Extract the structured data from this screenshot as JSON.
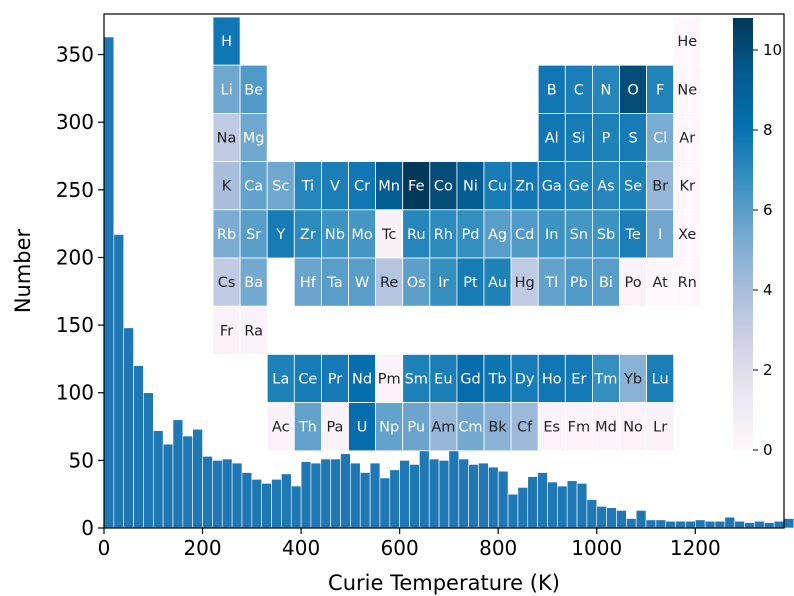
{
  "chart_data": {
    "type": "bar",
    "xlabel": "Curie Temperature (K)",
    "ylabel": "Number",
    "xlim": [
      0,
      1380
    ],
    "ylim": [
      0,
      380
    ],
    "xticks": [
      0,
      200,
      400,
      600,
      800,
      1000,
      1200
    ],
    "yticks": [
      0,
      50,
      100,
      150,
      200,
      250,
      300,
      350
    ],
    "bin_width": 20,
    "bin_start": 0,
    "values": [
      363,
      217,
      148,
      120,
      100,
      72,
      62,
      80,
      68,
      73,
      53,
      50,
      51,
      48,
      41,
      36,
      33,
      36,
      40,
      31,
      49,
      48,
      51,
      51,
      55,
      48,
      41,
      48,
      37,
      43,
      50,
      47,
      58,
      51,
      50,
      58,
      51,
      47,
      48,
      45,
      42,
      25,
      30,
      38,
      41,
      34,
      31,
      35,
      33,
      21,
      16,
      15,
      13,
      7,
      13,
      6,
      6,
      5,
      5,
      5,
      6,
      5,
      5,
      8,
      5,
      4,
      5,
      4,
      5,
      7,
      4,
      6,
      3,
      3,
      4,
      4,
      4,
      3,
      4,
      3,
      3,
      5,
      3,
      3,
      2,
      3,
      5,
      4,
      3,
      2,
      3,
      1,
      1,
      1,
      1,
      1,
      1,
      1,
      1,
      1,
      1,
      0,
      0,
      0,
      0,
      1,
      1,
      0,
      0,
      0
    ],
    "colors": {
      "bar": "#1f77b4",
      "bar_edge": "#ffffff"
    },
    "inset": {
      "type": "heatmap",
      "colormap": "PuBu",
      "colorbar_range": [
        0,
        10.8
      ],
      "colorbar_ticks": [
        0,
        2,
        4,
        6,
        8,
        10
      ],
      "elements": [
        [
          "H",
          1,
          1,
          7.8
        ],
        [
          "He",
          1,
          18,
          0
        ],
        [
          "Li",
          2,
          1,
          5.5
        ],
        [
          "Be",
          2,
          2,
          6.2
        ],
        [
          "B",
          2,
          13,
          7.8
        ],
        [
          "C",
          2,
          14,
          7.5
        ],
        [
          "N",
          2,
          15,
          7.2
        ],
        [
          "O",
          2,
          16,
          10
        ],
        [
          "F",
          2,
          17,
          7.3
        ],
        [
          "Ne",
          2,
          18,
          0
        ],
        [
          "Na",
          3,
          1,
          3.2
        ],
        [
          "Mg",
          3,
          2,
          5.5
        ],
        [
          "Al",
          3,
          13,
          7.8
        ],
        [
          "Si",
          3,
          14,
          7.6
        ],
        [
          "P",
          3,
          15,
          7.4
        ],
        [
          "S",
          3,
          16,
          7.6
        ],
        [
          "Cl",
          3,
          17,
          5.2
        ],
        [
          "Ar",
          3,
          18,
          0
        ],
        [
          "K",
          4,
          1,
          4.0
        ],
        [
          "Ca",
          4,
          2,
          5.8
        ],
        [
          "Sc",
          4,
          3,
          5.5
        ],
        [
          "Ti",
          4,
          4,
          7.2
        ],
        [
          "V",
          4,
          5,
          7.5
        ],
        [
          "Cr",
          4,
          6,
          7.8
        ],
        [
          "Mn",
          4,
          7,
          9.2
        ],
        [
          "Fe",
          4,
          8,
          10.8
        ],
        [
          "Co",
          4,
          9,
          10.0
        ],
        [
          "Ni",
          4,
          10,
          9.2
        ],
        [
          "Cu",
          4,
          11,
          7.6
        ],
        [
          "Zn",
          4,
          12,
          7.8
        ],
        [
          "Ga",
          4,
          13,
          7.7
        ],
        [
          "Ge",
          4,
          14,
          7.4
        ],
        [
          "As",
          4,
          15,
          7.2
        ],
        [
          "Se",
          4,
          16,
          7.4
        ],
        [
          "Br",
          4,
          17,
          4.5
        ],
        [
          "Kr",
          4,
          18,
          0
        ],
        [
          "Rb",
          5,
          1,
          5.2
        ],
        [
          "Sr",
          5,
          2,
          6.0
        ],
        [
          "Y",
          5,
          3,
          7.6
        ],
        [
          "Zr",
          5,
          4,
          7.0
        ],
        [
          "Nb",
          5,
          5,
          6.6
        ],
        [
          "Mo",
          5,
          6,
          6.4
        ],
        [
          "Tc",
          5,
          7,
          0.5
        ],
        [
          "Ru",
          5,
          8,
          7.2
        ],
        [
          "Rh",
          5,
          9,
          7.0
        ],
        [
          "Pd",
          5,
          10,
          6.8
        ],
        [
          "Ag",
          5,
          11,
          6.0
        ],
        [
          "Cd",
          5,
          12,
          6.2
        ],
        [
          "In",
          5,
          13,
          6.6
        ],
        [
          "Sn",
          5,
          14,
          6.4
        ],
        [
          "Sb",
          5,
          15,
          6.6
        ],
        [
          "Te",
          5,
          16,
          7.5
        ],
        [
          "I",
          5,
          17,
          5.5
        ],
        [
          "Xe",
          5,
          18,
          0
        ],
        [
          "Cs",
          6,
          1,
          3.2
        ],
        [
          "Ba",
          6,
          2,
          5.4
        ],
        [
          "Hf",
          6,
          4,
          5.6
        ],
        [
          "Ta",
          6,
          5,
          6.0
        ],
        [
          "W",
          6,
          6,
          6.0
        ],
        [
          "Re",
          6,
          7,
          3.6
        ],
        [
          "Os",
          6,
          8,
          5.9
        ],
        [
          "Ir",
          6,
          9,
          6.8
        ],
        [
          "Pt",
          6,
          10,
          7.6
        ],
        [
          "Au",
          6,
          11,
          7.4
        ],
        [
          "Hg",
          6,
          12,
          3.2
        ],
        [
          "Tl",
          6,
          13,
          5.8
        ],
        [
          "Pb",
          6,
          14,
          6.2
        ],
        [
          "Bi",
          6,
          15,
          6.0
        ],
        [
          "Po",
          6,
          16,
          0.3
        ],
        [
          "At",
          6,
          17,
          0
        ],
        [
          "Rn",
          6,
          18,
          0
        ],
        [
          "Fr",
          7,
          1,
          0.4
        ],
        [
          "Ra",
          7,
          2,
          0.4
        ],
        [
          "La",
          8,
          3,
          7.4
        ],
        [
          "Ce",
          8,
          4,
          7.6
        ],
        [
          "Pr",
          8,
          5,
          7.7
        ],
        [
          "Nd",
          8,
          6,
          8.2
        ],
        [
          "Pm",
          8,
          7,
          0.4
        ],
        [
          "Sm",
          8,
          8,
          7.4
        ],
        [
          "Eu",
          8,
          9,
          7.5
        ],
        [
          "Gd",
          8,
          10,
          8.3
        ],
        [
          "Tb",
          8,
          11,
          7.9
        ],
        [
          "Dy",
          8,
          12,
          7.6
        ],
        [
          "Ho",
          8,
          13,
          7.8
        ],
        [
          "Er",
          8,
          14,
          7.7
        ],
        [
          "Tm",
          8,
          15,
          6.8
        ],
        [
          "Yb",
          8,
          16,
          4.8
        ],
        [
          "Lu",
          8,
          17,
          7.5
        ],
        [
          "Ac",
          9,
          3,
          0.4
        ],
        [
          "Th",
          9,
          4,
          5.8
        ],
        [
          "Pa",
          9,
          5,
          0.4
        ],
        [
          "U",
          9,
          6,
          8.3
        ],
        [
          "Np",
          9,
          7,
          5.8
        ],
        [
          "Pu",
          9,
          8,
          5.6
        ],
        [
          "Am",
          9,
          9,
          4.5
        ],
        [
          "Cm",
          9,
          10,
          5.4
        ],
        [
          "Bk",
          9,
          11,
          4.8
        ],
        [
          "Cf",
          9,
          12,
          4.3
        ],
        [
          "Es",
          9,
          13,
          0.3
        ],
        [
          "Fm",
          9,
          14,
          0.3
        ],
        [
          "Md",
          9,
          15,
          0.3
        ],
        [
          "No",
          9,
          16,
          0.3
        ],
        [
          "Lr",
          9,
          17,
          0.4
        ]
      ]
    }
  }
}
